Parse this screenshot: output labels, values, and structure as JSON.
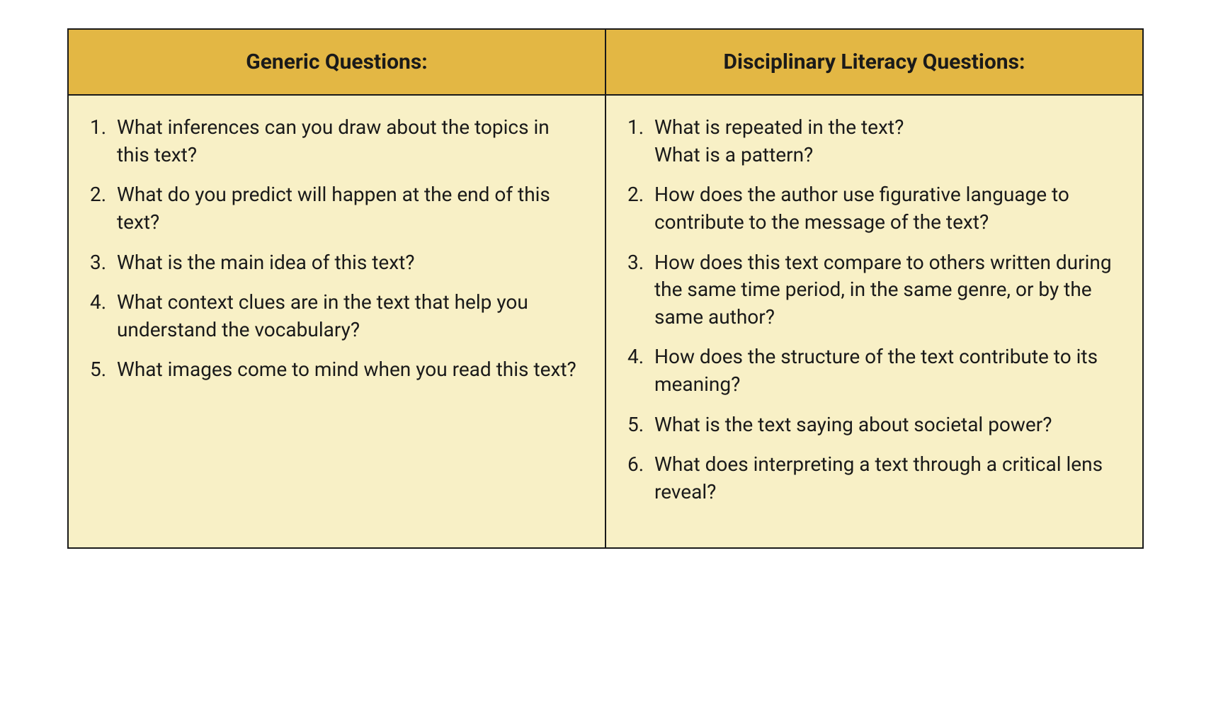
{
  "table": {
    "header_bg": "#e3b744",
    "body_bg": "#f8f0c6",
    "border_color": "#1a1a1a",
    "columns": [
      {
        "title": "Generic Questions:"
      },
      {
        "title": "Disciplinary Literacy Questions:"
      }
    ],
    "left_items": [
      {
        "text": "What inferences can you draw about the topics in this text?"
      },
      {
        "text": "What do you predict will happen at the end of this text?"
      },
      {
        "text": "What is the main idea of this text?"
      },
      {
        "text": "What context clues are in the text that help you understand the vocabulary?"
      },
      {
        "text": "What images come to mind when you read this text?"
      }
    ],
    "right_items": [
      {
        "text": "What is repeated in the text?",
        "extra": "What is a pattern?"
      },
      {
        "text": "How does the author use figurative language to contribute to the message of the text?"
      },
      {
        "text": "How does this text compare to others written during the same time period, in the same genre, or by the same author?"
      },
      {
        "text": "How does the structure of the text contribute to its meaning?"
      },
      {
        "text": "What is the text saying about societal power?"
      },
      {
        "text": "What does interpreting a text through a critical lens reveal?"
      }
    ]
  }
}
